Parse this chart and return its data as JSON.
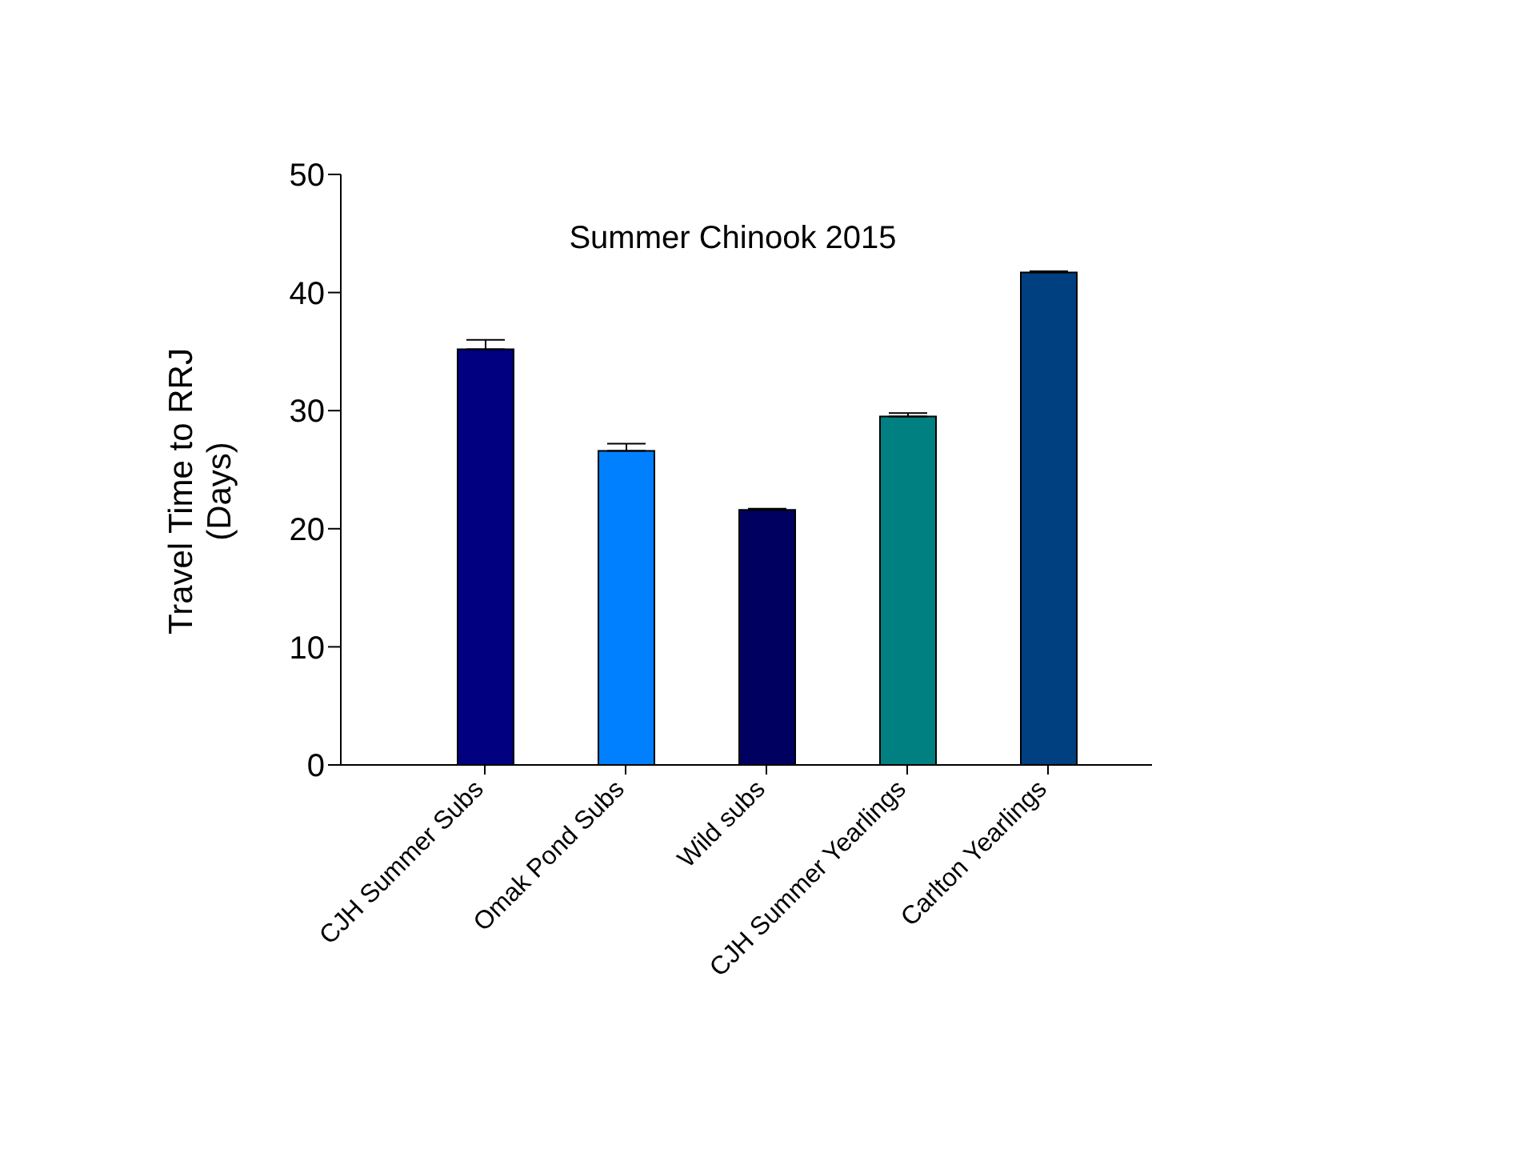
{
  "chart_data": {
    "type": "bar",
    "title": "Summer Chinook 2015",
    "ylabel": "Travel Time to RRJ\n(Days)",
    "categories": [
      "CJH Summer Subs",
      "Omak Pond Subs",
      "Wild subs",
      "CJH Summer Yearlings",
      "Carlton Yearlings"
    ],
    "values": [
      35.2,
      26.6,
      21.6,
      29.5,
      41.7
    ],
    "errors": [
      [
        35.2,
        36.0
      ],
      [
        26.6,
        27.2
      ],
      [
        21.6,
        21.7
      ],
      [
        29.5,
        29.8
      ],
      [
        41.7,
        41.8
      ]
    ],
    "colors": [
      "#000080",
      "#0080ff",
      "#000060",
      "#008080",
      "#004080"
    ],
    "ylim": [
      0,
      50
    ],
    "yticks": [
      0,
      10,
      20,
      30,
      40,
      50
    ],
    "grid": false,
    "legend": false
  }
}
